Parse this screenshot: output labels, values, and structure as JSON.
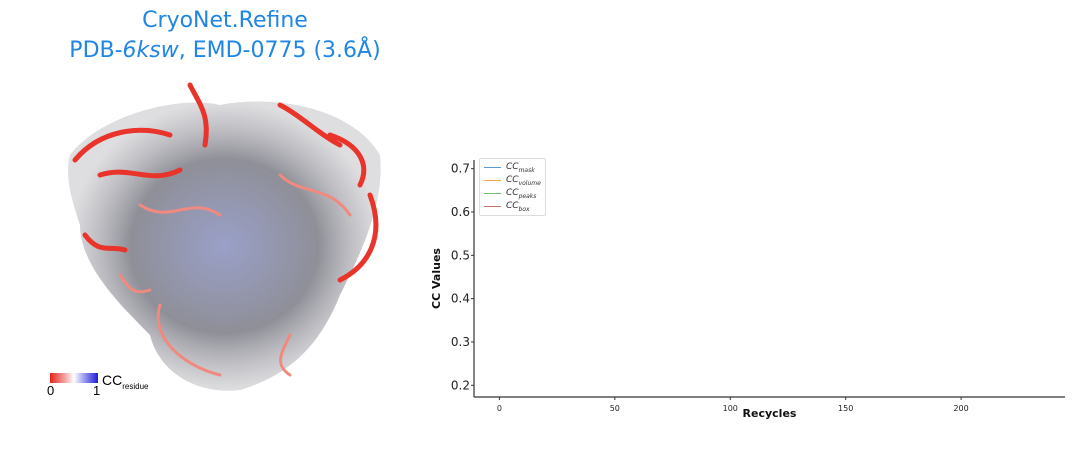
{
  "title": {
    "line1": "CryoNet.Refine",
    "line2_prefix": "PDB-",
    "line2_id": "6ksw",
    "line2_suffix": ", EMD-0775 (3.6Å)"
  },
  "colorbar": {
    "min": "0",
    "max": "1",
    "label": "CC",
    "label_sub": "residue",
    "colors": [
      "#e8231c",
      "#ffffff",
      "#1d1dd6"
    ]
  },
  "chart_data": {
    "type": "line",
    "title": "",
    "xlabel": "Recycles",
    "ylabel": "CC Values",
    "xlim": [
      -11,
      245
    ],
    "ylim": [
      0.173,
      0.72
    ],
    "xticks": [
      0,
      50,
      100,
      150,
      200
    ],
    "yticks": [
      0.2,
      0.3,
      0.4,
      0.5,
      0.6,
      0.7
    ],
    "grid": false,
    "legend_placement": "top-left",
    "series": [
      {
        "name": "CC",
        "sub": "mask",
        "color": "#5b9bd5",
        "values": []
      },
      {
        "name": "CC",
        "sub": "volume",
        "color": "#f5a34f",
        "values": []
      },
      {
        "name": "CC",
        "sub": "peaks",
        "color": "#6cbf6c",
        "values": []
      },
      {
        "name": "CC",
        "sub": "box",
        "color": "#c8706e",
        "values": []
      }
    ]
  }
}
